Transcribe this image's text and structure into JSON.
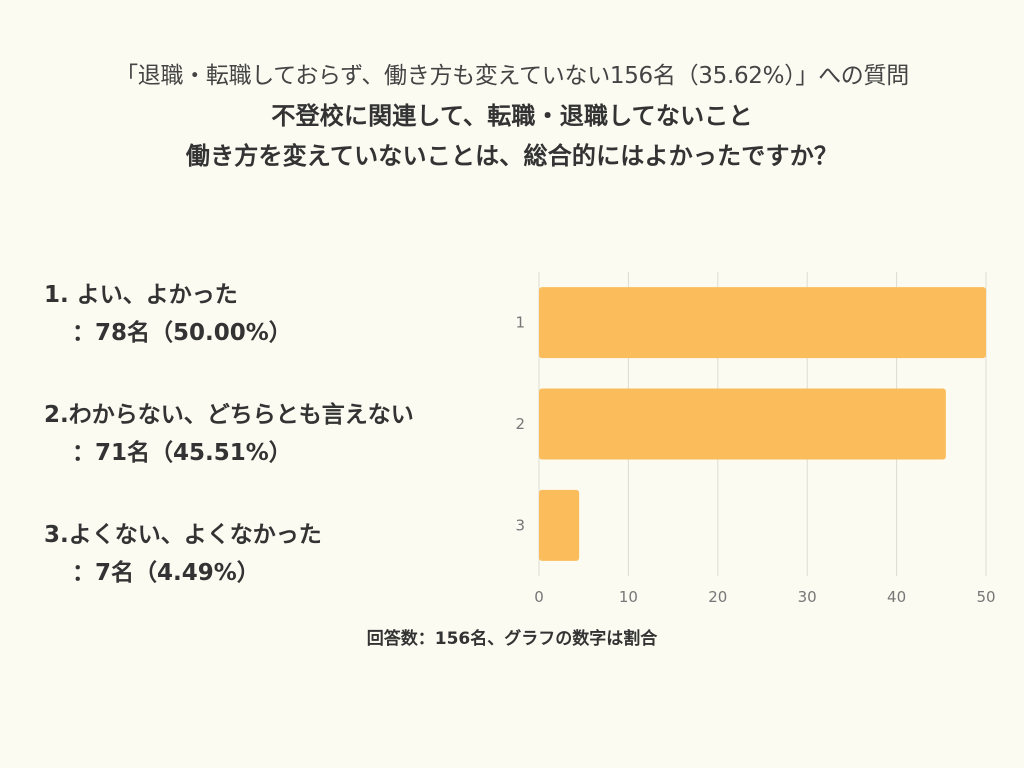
{
  "header": {
    "subtitle": "「退職・転職しておらず、働き方も変えていない156名（35.62%）」への質問",
    "question_line1": "不登校に関連して、転職・退職してないこと",
    "question_line2": "働き方を変えていないことは、総合的にはよかったですか？"
  },
  "answers": [
    {
      "label": "1. よい、よかった",
      "count": "：78名（50.00%）"
    },
    {
      "label": "2.わからない、どちらとも言えない",
      "count": "：71名（45.51%）"
    },
    {
      "label": "3.よくない、よくなかった",
      "count": "：7名（4.49%）"
    }
  ],
  "footer": "回答数：156名、グラフの数字は割合",
  "colors": {
    "bar": "#fbbd5c",
    "grid": "#dcdcd4",
    "axis_text": "#777777"
  },
  "chart_data": {
    "type": "bar",
    "orientation": "horizontal",
    "categories": [
      "1",
      "2",
      "3"
    ],
    "values": [
      50.0,
      45.51,
      4.49
    ],
    "xlim": [
      0,
      50
    ],
    "xticks": [
      0,
      10,
      20,
      30,
      40,
      50
    ],
    "grid": true
  }
}
